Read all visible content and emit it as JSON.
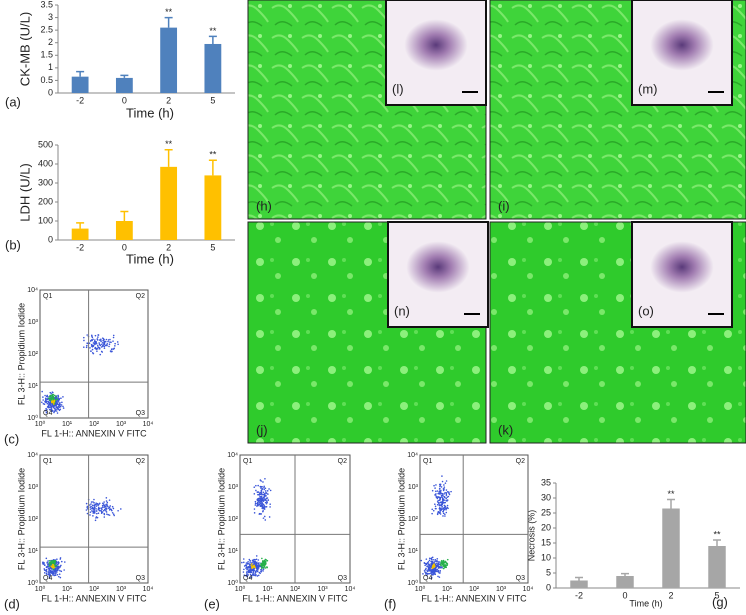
{
  "chart_data": [
    {
      "type": "bar",
      "panel": "(a)",
      "y_label": "CK-MB (U/L)",
      "x_label": "Time (h)",
      "categories": [
        "-2",
        "0",
        "2",
        "5"
      ],
      "values": [
        0.65,
        0.6,
        2.6,
        1.95
      ],
      "errors": [
        0.2,
        0.1,
        0.4,
        0.3
      ],
      "markers": [
        null,
        null,
        "**",
        "**"
      ],
      "color": "#4f81bd",
      "ylim": [
        0,
        3.5
      ],
      "yticks": [
        0,
        0.5,
        1,
        1.5,
        2,
        2.5,
        3,
        3.5
      ]
    },
    {
      "type": "bar",
      "panel": "(b)",
      "y_label": "LDH (U/L)",
      "x_label": "Time (h)",
      "categories": [
        "-2",
        "0",
        "2",
        "5"
      ],
      "values": [
        60,
        100,
        385,
        340
      ],
      "errors": [
        30,
        50,
        90,
        80
      ],
      "markers": [
        null,
        null,
        "**",
        "**"
      ],
      "color": "#ffc000",
      "ylim": [
        0,
        500
      ],
      "yticks": [
        0,
        100,
        200,
        300,
        400,
        500
      ]
    },
    {
      "type": "bar",
      "panel": "(g)",
      "y_label": "Necrosis (%)",
      "x_label": "Time (h)",
      "categories": [
        "-2",
        "0",
        "2",
        "5"
      ],
      "values": [
        2.5,
        4,
        26.5,
        14
      ],
      "errors": [
        1,
        0.8,
        3,
        2
      ],
      "markers": [
        null,
        null,
        "**",
        "**"
      ],
      "color": "#a6a6a6",
      "ylim": [
        0,
        35
      ],
      "yticks": [
        0,
        5,
        10,
        15,
        20,
        25,
        30,
        35
      ]
    }
  ],
  "flow": {
    "y_label": "FL 3-H:: Propidium Iodide",
    "x_label": "FL 1-H:: ANNEXIN V FITC",
    "quadrants": [
      "Q1",
      "Q2",
      "Q3",
      "Q4"
    ],
    "ticks": [
      "10⁰",
      "10¹",
      "10²",
      "10³",
      "10⁴"
    ],
    "panels": [
      "(c)",
      "(d)",
      "(e)",
      "(f)"
    ]
  },
  "micrographs": [
    "(h)",
    "(i)",
    "(j)",
    "(k)"
  ],
  "insets": [
    "(l)",
    "(m)",
    "(n)",
    "(o)"
  ]
}
